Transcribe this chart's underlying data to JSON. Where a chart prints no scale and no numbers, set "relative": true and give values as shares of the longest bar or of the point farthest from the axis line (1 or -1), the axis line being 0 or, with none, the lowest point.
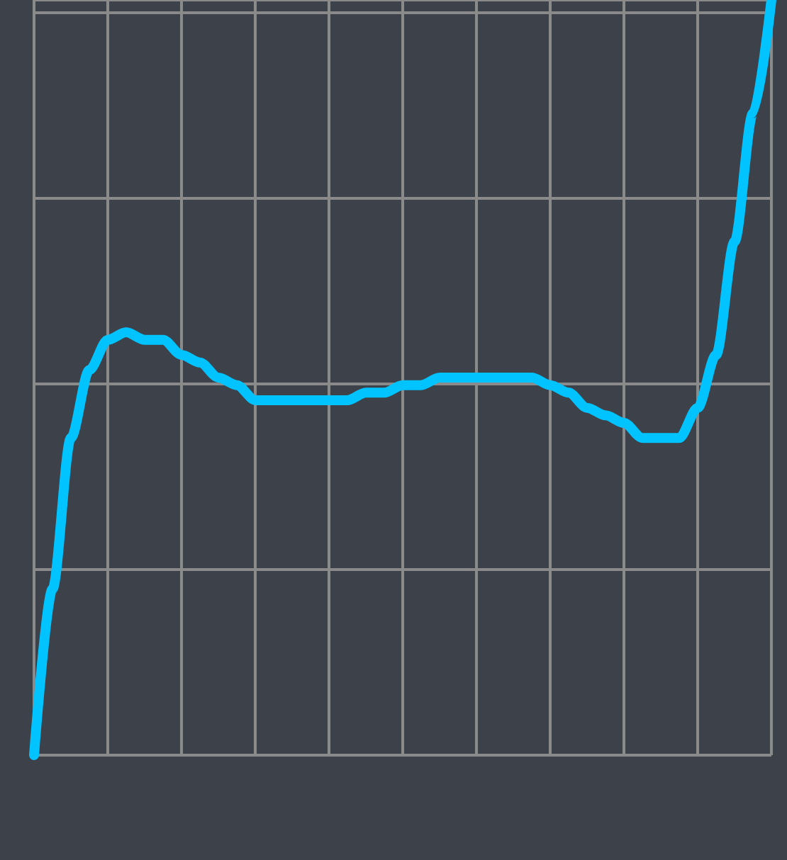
{
  "chart_data": {
    "type": "line",
    "relative": true,
    "grid": true,
    "line_style": "solid",
    "categories": [
      null,
      null,
      null,
      null,
      null,
      null,
      null,
      null,
      null,
      null,
      null,
      null,
      null,
      null,
      null,
      null,
      null,
      null,
      null,
      null,
      null,
      null,
      null,
      null,
      null,
      null,
      null,
      null,
      null,
      null,
      null,
      null,
      null,
      null,
      null,
      null,
      null,
      null,
      null,
      null,
      null
    ],
    "series": [
      {
        "color": "#00c3ff",
        "values": [
          0,
          0.22,
          0.42,
          0.51,
          0.55,
          0.56,
          0.55,
          0.55,
          0.53,
          0.52,
          0.5,
          0.49,
          0.47,
          0.47,
          0.47,
          0.47,
          0.47,
          0.47,
          0.48,
          0.48,
          0.49,
          0.49,
          0.5,
          0.5,
          0.5,
          0.5,
          0.5,
          0.5,
          0.49,
          0.48,
          0.46,
          0.45,
          0.44,
          0.42,
          0.42,
          0.42,
          0.46,
          0.53,
          0.68,
          0.85,
          1
        ]
      }
    ]
  }
}
